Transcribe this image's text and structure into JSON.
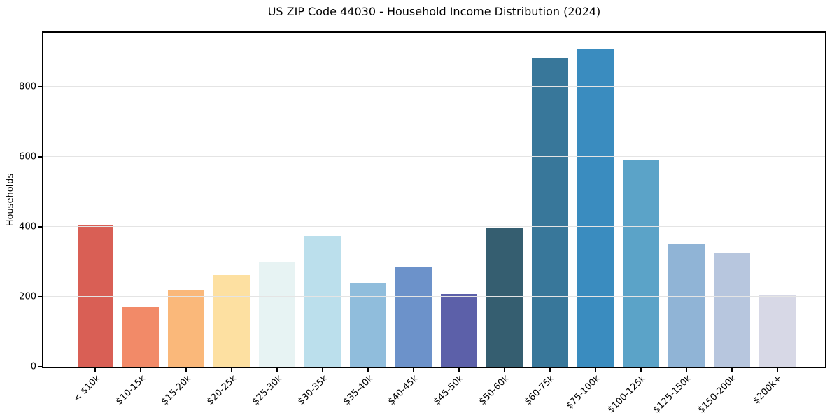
{
  "chart_data": {
    "type": "bar",
    "title": "US ZIP Code 44030 - Household Income Distribution (2024)",
    "xlabel": "",
    "ylabel": "Households",
    "categories": [
      "< $10k",
      "$10-15k",
      "$15-20k",
      "$20-25k",
      "$25-30k",
      "$30-35k",
      "$35-40k",
      "$40-45k",
      "$45-50k",
      "$50-60k",
      "$60-75k",
      "$75-100k",
      "$100-125k",
      "$125-150k",
      "$150-200k",
      "$200k+"
    ],
    "values": [
      404,
      171,
      219,
      262,
      301,
      374,
      239,
      284,
      209,
      397,
      882,
      908,
      593,
      351,
      324,
      207
    ],
    "bar_colors": [
      "#d95f55",
      "#f28a68",
      "#fab87a",
      "#fde0a1",
      "#e7f3f3",
      "#bbdfec",
      "#90bddc",
      "#6c92ca",
      "#5c60a9",
      "#355e70",
      "#38779a",
      "#3a8cbf",
      "#5ba3c8",
      "#90b4d6",
      "#b7c6de",
      "#d7d8e6"
    ],
    "yticks": [
      0,
      200,
      400,
      600,
      800
    ],
    "ylim": [
      0,
      954
    ],
    "grid": "horizontal",
    "grid_on_top_of_bars": true,
    "grid_color": "#e4e4e4",
    "axis_color": "#000000",
    "background_color": "#ffffff",
    "legend": "none",
    "xtick_rotation_deg": 45
  }
}
